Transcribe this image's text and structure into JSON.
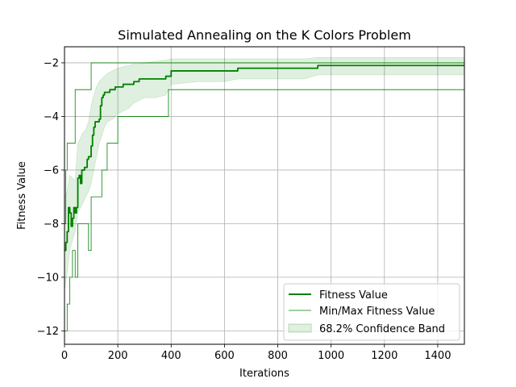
{
  "chart_data": {
    "type": "line",
    "title": "Simulated Annealing on the K Colors Problem",
    "xlabel": "Iterations",
    "ylabel": "Fitness Value",
    "xlim": [
      0,
      1500
    ],
    "ylim": [
      -12.5,
      -1.4
    ],
    "xticks": [
      0,
      200,
      400,
      600,
      800,
      1000,
      1200,
      1400
    ],
    "yticks": [
      -12,
      -10,
      -8,
      -6,
      -4,
      -2
    ],
    "grid": true,
    "legend_position": "lower-right",
    "colors": {
      "series": "#008000",
      "band": "#008000",
      "grid": "#b0b0b0"
    },
    "series": [
      {
        "name": "Fitness Value",
        "kind": "line",
        "x": [
          0,
          5,
          10,
          15,
          20,
          25,
          30,
          35,
          40,
          45,
          50,
          55,
          60,
          65,
          70,
          75,
          80,
          85,
          90,
          95,
          100,
          105,
          110,
          115,
          120,
          125,
          130,
          135,
          140,
          145,
          150,
          160,
          170,
          180,
          190,
          200,
          220,
          240,
          260,
          280,
          300,
          320,
          340,
          360,
          380,
          400,
          450,
          500,
          550,
          600,
          650,
          700,
          800,
          900,
          950,
          1000,
          1100,
          1200,
          1300,
          1400,
          1500
        ],
        "y": [
          -9.0,
          -8.7,
          -8.3,
          -7.4,
          -7.6,
          -8.1,
          -7.8,
          -7.4,
          -7.6,
          -7.4,
          -6.3,
          -6.2,
          -6.5,
          -6.0,
          -6.0,
          -5.9,
          -5.9,
          -5.6,
          -5.5,
          -5.5,
          -5.1,
          -4.7,
          -4.4,
          -4.2,
          -4.2,
          -4.2,
          -4.1,
          -3.6,
          -3.3,
          -3.2,
          -3.1,
          -3.1,
          -3.0,
          -3.0,
          -2.9,
          -2.9,
          -2.8,
          -2.8,
          -2.7,
          -2.6,
          -2.6,
          -2.6,
          -2.6,
          -2.6,
          -2.5,
          -2.3,
          -2.3,
          -2.3,
          -2.3,
          -2.3,
          -2.2,
          -2.2,
          -2.2,
          -2.2,
          -2.1,
          -2.1,
          -2.1,
          -2.1,
          -2.1,
          -2.1,
          -2.1
        ]
      },
      {
        "name": "Min/Max Fitness Value",
        "kind": "minmax",
        "x": [
          0,
          5,
          10,
          20,
          30,
          40,
          50,
          60,
          70,
          80,
          90,
          100,
          110,
          120,
          140,
          160,
          200,
          240,
          300,
          380,
          390,
          500,
          800,
          1000,
          1500
        ],
        "min": [
          -12.0,
          -12.0,
          -11.0,
          -10.0,
          -9.0,
          -10.0,
          -8.0,
          -8.0,
          -8.0,
          -8.0,
          -9.0,
          -7.0,
          -7.0,
          -7.0,
          -6.0,
          -5.0,
          -4.0,
          -4.0,
          -4.0,
          -4.0,
          -3.0,
          -3.0,
          -3.0,
          -3.0,
          -3.0
        ],
        "max": [
          -8.0,
          -6.0,
          -5.0,
          -5.0,
          -5.0,
          -3.0,
          -3.0,
          -3.0,
          -3.0,
          -3.0,
          -3.0,
          -2.0,
          -2.0,
          -2.0,
          -2.0,
          -2.0,
          -2.0,
          -2.0,
          -2.0,
          -2.0,
          -2.0,
          -2.0,
          -2.0,
          -2.0,
          -2.0
        ]
      },
      {
        "name": "68.2% Confidence Band",
        "kind": "band",
        "x": [
          0,
          10,
          20,
          30,
          40,
          50,
          60,
          70,
          80,
          90,
          100,
          110,
          120,
          130,
          140,
          150,
          160,
          180,
          200,
          220,
          240,
          260,
          280,
          300,
          340,
          380,
          400,
          500,
          600,
          650,
          700,
          800,
          900,
          950,
          1000,
          1200,
          1500
        ],
        "lower": [
          -10.5,
          -9.8,
          -9.0,
          -8.6,
          -8.3,
          -7.6,
          -7.4,
          -7.2,
          -7.0,
          -6.8,
          -6.5,
          -6.0,
          -5.5,
          -5.0,
          -4.7,
          -4.4,
          -4.2,
          -4.1,
          -3.9,
          -3.8,
          -3.7,
          -3.5,
          -3.4,
          -3.3,
          -3.3,
          -3.2,
          -2.8,
          -2.7,
          -2.7,
          -2.6,
          -2.6,
          -2.6,
          -2.6,
          -2.45,
          -2.45,
          -2.45,
          -2.45
        ],
        "upper": [
          -7.0,
          -6.8,
          -6.2,
          -6.3,
          -6.4,
          -5.0,
          -4.8,
          -4.6,
          -4.5,
          -4.2,
          -3.6,
          -3.2,
          -2.9,
          -2.7,
          -2.6,
          -2.5,
          -2.4,
          -2.3,
          -2.2,
          -2.15,
          -2.1,
          -2.05,
          -2.05,
          -2.0,
          -1.95,
          -1.9,
          -1.85,
          -1.85,
          -1.85,
          -1.85,
          -1.85,
          -1.85,
          -1.85,
          -1.8,
          -1.8,
          -1.8,
          -1.8
        ]
      }
    ]
  }
}
